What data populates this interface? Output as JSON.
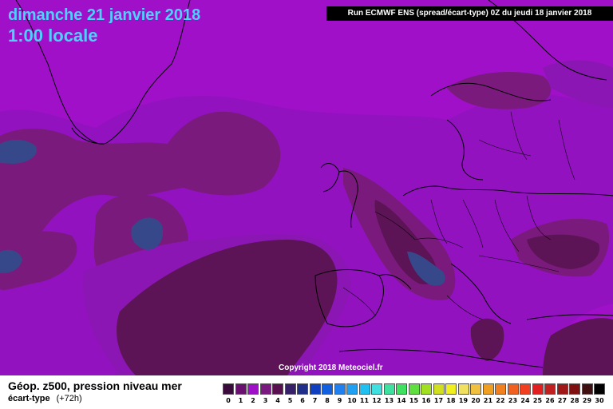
{
  "header": {
    "title": "dimanche 21 janvier 2018",
    "time": "1:00 locale",
    "run_info": "Run ECMWF ENS (spread/écart-type) 0Z du jeudi 18 janvier 2018"
  },
  "map": {
    "copyright": "Copyright 2018 Meteociel.fr",
    "base_color": "#a010c8"
  },
  "footer": {
    "parameter": "Géop. z500, pression niveau mer",
    "subparameter": "écart-type",
    "lead_time": "(+72h)"
  },
  "legend": {
    "items": [
      {
        "label": "0",
        "color": "#3a0a3a"
      },
      {
        "label": "1",
        "color": "#6a1070"
      },
      {
        "label": "2",
        "color": "#a010c8"
      },
      {
        "label": "3",
        "color": "#7a1a80"
      },
      {
        "label": "4",
        "color": "#5a1050"
      },
      {
        "label": "5",
        "color": "#36206a"
      },
      {
        "label": "6",
        "color": "#20308a"
      },
      {
        "label": "7",
        "color": "#1040c0"
      },
      {
        "label": "8",
        "color": "#1060e0"
      },
      {
        "label": "9",
        "color": "#2080f0"
      },
      {
        "label": "10",
        "color": "#20a0f0"
      },
      {
        "label": "11",
        "color": "#20c0f0"
      },
      {
        "label": "12",
        "color": "#40e0e0"
      },
      {
        "label": "13",
        "color": "#40e0a0"
      },
      {
        "label": "14",
        "color": "#40e060"
      },
      {
        "label": "15",
        "color": "#60e040"
      },
      {
        "label": "16",
        "color": "#a0e020"
      },
      {
        "label": "17",
        "color": "#d0e020"
      },
      {
        "label": "18",
        "color": "#f0f020"
      },
      {
        "label": "19",
        "color": "#f0e060"
      },
      {
        "label": "20",
        "color": "#f0c040"
      },
      {
        "label": "21",
        "color": "#f0a020"
      },
      {
        "label": "22",
        "color": "#f08020"
      },
      {
        "label": "23",
        "color": "#f06020"
      },
      {
        "label": "24",
        "color": "#f04020"
      },
      {
        "label": "25",
        "color": "#e02020"
      },
      {
        "label": "26",
        "color": "#c02020"
      },
      {
        "label": "27",
        "color": "#a01818"
      },
      {
        "label": "28",
        "color": "#801010"
      },
      {
        "label": "29",
        "color": "#401010"
      },
      {
        "label": "30",
        "color": "#000000"
      }
    ]
  }
}
